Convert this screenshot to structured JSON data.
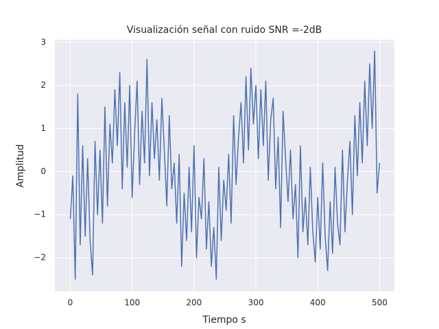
{
  "chart_data": {
    "type": "line",
    "title": "Visualización señal con ruido SNR =-2dB",
    "x_label": "Tiempo s",
    "y_label": "Amplitud",
    "x": [
      0,
      4,
      8,
      12,
      16,
      20,
      24,
      28,
      32,
      36,
      40,
      44,
      48,
      52,
      56,
      60,
      64,
      68,
      72,
      76,
      80,
      84,
      88,
      92,
      96,
      100,
      104,
      108,
      112,
      116,
      120,
      124,
      128,
      132,
      136,
      140,
      144,
      148,
      152,
      156,
      160,
      164,
      168,
      172,
      176,
      180,
      184,
      188,
      192,
      196,
      200,
      204,
      208,
      212,
      216,
      220,
      224,
      228,
      232,
      236,
      240,
      244,
      248,
      252,
      256,
      260,
      264,
      268,
      272,
      276,
      280,
      284,
      288,
      292,
      296,
      300,
      304,
      308,
      312,
      316,
      320,
      324,
      328,
      332,
      336,
      340,
      344,
      348,
      352,
      356,
      360,
      364,
      368,
      372,
      376,
      380,
      384,
      388,
      392,
      396,
      400,
      404,
      408,
      412,
      416,
      420,
      424,
      428,
      432,
      436,
      440,
      444,
      448,
      452,
      456,
      460,
      464,
      468,
      472,
      476,
      480,
      484,
      488,
      492,
      496,
      500
    ],
    "series": [
      {
        "color": "#4c72b0",
        "values": [
          -1.1,
          -0.1,
          -2.5,
          1.8,
          -1.7,
          0.6,
          -1.5,
          0.3,
          -1.6,
          -2.4,
          0.7,
          -1.0,
          0.5,
          -1.2,
          1.5,
          -0.8,
          1.1,
          0.2,
          1.9,
          0.6,
          2.3,
          -0.4,
          1.6,
          0.1,
          2.0,
          -0.6,
          0.9,
          2.1,
          -0.3,
          1.4,
          0.2,
          2.6,
          -0.1,
          1.6,
          0.3,
          1.2,
          -0.2,
          1.7,
          0.5,
          -0.8,
          1.3,
          -0.4,
          0.2,
          -1.2,
          0.4,
          -2.2,
          -0.5,
          -1.6,
          0.1,
          -1.4,
          0.6,
          -2.0,
          -0.6,
          -1.1,
          0.3,
          -1.8,
          -0.7,
          -2.2,
          -1.3,
          -2.5,
          0.1,
          -1.6,
          -0.2,
          -0.9,
          0.4,
          -1.2,
          1.3,
          -0.3,
          0.8,
          1.6,
          0.2,
          2.2,
          0.5,
          2.4,
          1.1,
          2.0,
          0.3,
          1.9,
          0.6,
          2.1,
          -0.2,
          1.2,
          1.7,
          -0.4,
          0.8,
          -1.3,
          1.4,
          0.3,
          -0.7,
          0.5,
          -1.1,
          -0.3,
          -2.0,
          0.6,
          -1.4,
          -0.6,
          -1.7,
          0.1,
          -1.4,
          -2.1,
          -0.6,
          -1.8,
          0.2,
          -1.5,
          -2.3,
          -0.7,
          -1.9,
          0.1,
          -1.2,
          -1.7,
          0.5,
          -1.4,
          -0.2,
          0.7,
          -1.0,
          1.3,
          -0.1,
          1.6,
          0.2,
          2.1,
          0.6,
          2.5,
          1.0,
          2.8,
          -0.5,
          0.2
        ]
      }
    ],
    "xlim": [
      -24.95,
      523.95
    ],
    "ylim": [
      -2.78,
      3.06
    ],
    "xticks": [
      0,
      100,
      200,
      300,
      400,
      500
    ],
    "yticks": [
      {
        "value": -2,
        "label": "−2"
      },
      {
        "value": -1,
        "label": "−1"
      },
      0,
      1,
      2,
      3
    ],
    "grid": true
  }
}
